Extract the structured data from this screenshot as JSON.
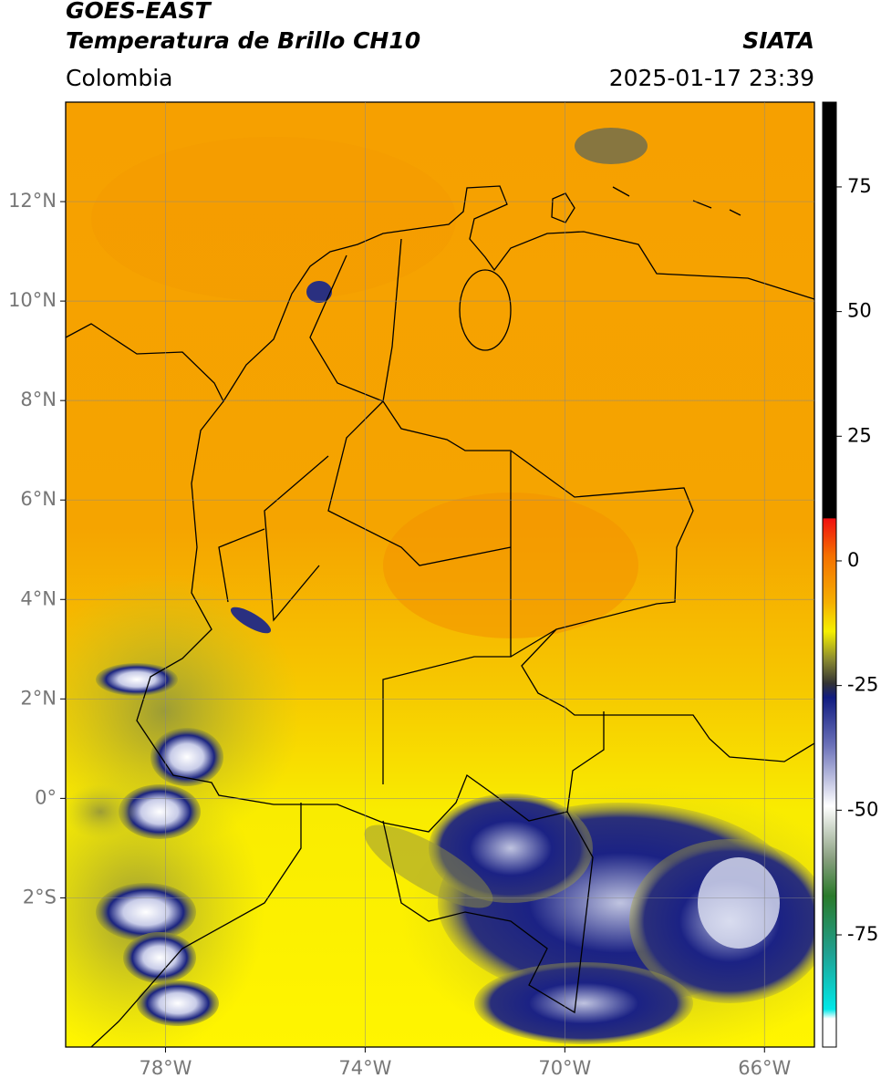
{
  "header": {
    "title": "GOES-EAST",
    "subtitle": "Temperatura de Brillo CH10",
    "region": "Colombia",
    "source": "SIATA",
    "datetime": "2025-01-17 23:39"
  },
  "map": {
    "lonlim": [
      -80,
      -65
    ],
    "latlim": [
      -5,
      14
    ],
    "lon_ticks": [
      {
        "value": -78,
        "label": "78°W"
      },
      {
        "value": -74,
        "label": "74°W"
      },
      {
        "value": -70,
        "label": "70°W"
      },
      {
        "value": -66,
        "label": "66°W"
      }
    ],
    "lat_ticks": [
      {
        "value": 12,
        "label": "12°N"
      },
      {
        "value": 10,
        "label": "10°N"
      },
      {
        "value": 8,
        "label": "8°N"
      },
      {
        "value": 6,
        "label": "6°N"
      },
      {
        "value": 4,
        "label": "4°N"
      },
      {
        "value": 2,
        "label": "2°N"
      },
      {
        "value": 0,
        "label": "0°"
      },
      {
        "value": -2,
        "label": "2°S"
      }
    ]
  },
  "colorbar": {
    "lim": [
      -97.5,
      92
    ],
    "ticks": [
      75,
      50,
      25,
      0,
      -25,
      -50,
      -75
    ]
  }
}
